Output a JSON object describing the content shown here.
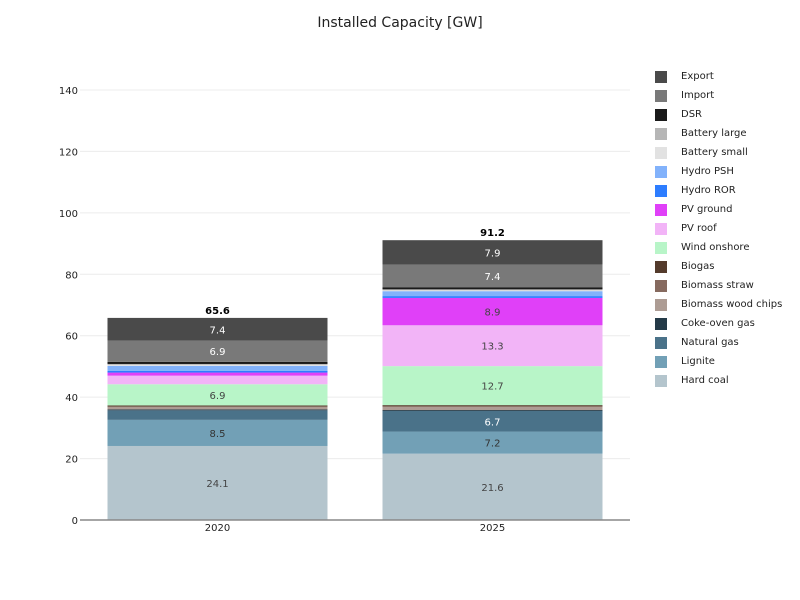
{
  "chart_data": {
    "type": "bar",
    "stacked": true,
    "title": "Installed Capacity [GW]",
    "xlabel": "",
    "ylabel": "",
    "categories": [
      "2020",
      "2025"
    ],
    "ylim": [
      0,
      150
    ],
    "yticks": [
      0,
      20,
      40,
      60,
      80,
      100,
      120,
      140
    ],
    "grid": true,
    "legend_position": "right",
    "totals": [
      "65.6",
      "91.2"
    ],
    "series": [
      {
        "name": "Hard coal",
        "color": "#b4c5cd",
        "values": [
          24.1,
          21.6
        ],
        "labels": [
          "24.1",
          "21.6"
        ],
        "label_color": "#444444"
      },
      {
        "name": "Lignite",
        "color": "#72a0b6",
        "values": [
          8.5,
          7.2
        ],
        "labels": [
          "8.5",
          "7.2"
        ],
        "label_color": "#333333"
      },
      {
        "name": "Natural gas",
        "color": "#4a7289",
        "values": [
          3.1,
          6.7
        ],
        "labels": [
          "",
          "6.7"
        ],
        "label_color": "#ffffff"
      },
      {
        "name": "Coke-oven gas",
        "color": "#243a48",
        "values": [
          0.3,
          0.3
        ],
        "labels": [
          "",
          ""
        ],
        "label_color": "#ffffff"
      },
      {
        "name": "Biomass wood chips",
        "color": "#ad9c94",
        "values": [
          0.7,
          1.0
        ],
        "labels": [
          "",
          ""
        ],
        "label_color": "#333333"
      },
      {
        "name": "Biomass straw",
        "color": "#866a5f",
        "values": [
          0.3,
          0.3
        ],
        "labels": [
          "",
          ""
        ],
        "label_color": "#ffffff"
      },
      {
        "name": "Biogas",
        "color": "#543b2c",
        "values": [
          0.3,
          0.3
        ],
        "labels": [
          "",
          ""
        ],
        "label_color": "#ffffff"
      },
      {
        "name": "Wind onshore",
        "color": "#b8f5c8",
        "values": [
          6.9,
          12.7
        ],
        "labels": [
          "6.9",
          "12.7"
        ],
        "label_color": "#444444"
      },
      {
        "name": "PV roof",
        "color": "#f2b4f7",
        "values": [
          2.8,
          13.3
        ],
        "labels": [
          "",
          "13.3"
        ],
        "label_color": "#444444"
      },
      {
        "name": "PV ground",
        "color": "#e040f8",
        "values": [
          1.0,
          8.9
        ],
        "labels": [
          "",
          "8.9"
        ],
        "label_color": "#444444"
      },
      {
        "name": "Hydro ROR",
        "color": "#2d7dff",
        "values": [
          0.6,
          0.6
        ],
        "labels": [
          "",
          ""
        ],
        "label_color": "#ffffff"
      },
      {
        "name": "Hydro PSH",
        "color": "#82b2fb",
        "values": [
          1.6,
          1.6
        ],
        "labels": [
          "",
          ""
        ],
        "label_color": "#333333"
      },
      {
        "name": "Battery small",
        "color": "#e2e2e2",
        "values": [
          0.3,
          0.3
        ],
        "labels": [
          "",
          ""
        ],
        "label_color": "#333333"
      },
      {
        "name": "Battery large",
        "color": "#b6b6b6",
        "values": [
          0.3,
          0.3
        ],
        "labels": [
          "",
          ""
        ],
        "label_color": "#333333"
      },
      {
        "name": "DSR",
        "color": "#1a1a1a",
        "values": [
          0.7,
          0.7
        ],
        "labels": [
          "",
          ""
        ],
        "label_color": "#ffffff"
      },
      {
        "name": "Import",
        "color": "#797979",
        "values": [
          6.9,
          7.4
        ],
        "labels": [
          "6.9",
          "7.4"
        ],
        "label_color": "#ffffff"
      },
      {
        "name": "Export",
        "color": "#4a4a4a",
        "values": [
          7.4,
          7.9
        ],
        "labels": [
          "7.4",
          "7.9"
        ],
        "label_color": "#ffffff"
      }
    ]
  }
}
